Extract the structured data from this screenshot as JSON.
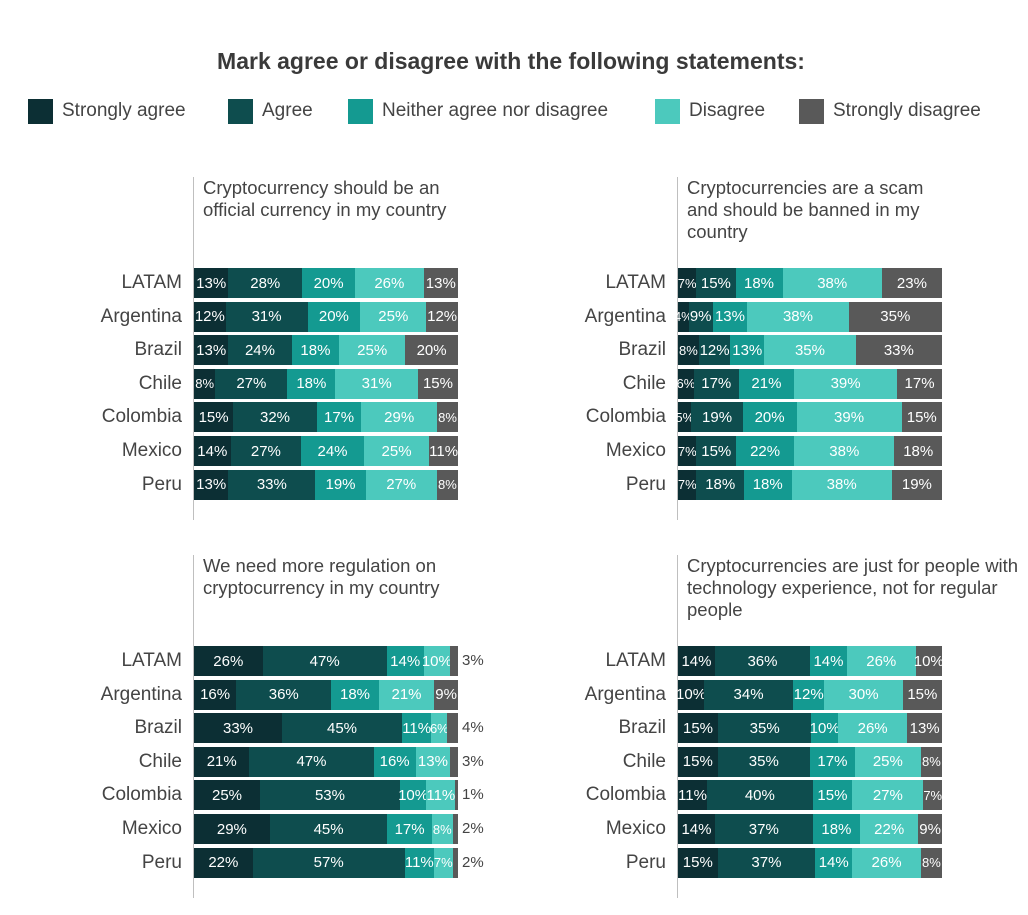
{
  "title": "Mark agree or disagree with the following statements:",
  "colors": {
    "strongly_agree": "#0c2f34",
    "agree": "#0e4d4e",
    "neither": "#149a91",
    "disagree": "#4cc9bd",
    "strongly_disagree": "#595959"
  },
  "legend": [
    {
      "label": "Strongly agree",
      "color": "#0c2f34"
    },
    {
      "label": "Agree",
      "color": "#0e4d4e"
    },
    {
      "label": "Neither agree nor disagree",
      "color": "#149a91"
    },
    {
      "label": "Disagree",
      "color": "#4cc9bd"
    },
    {
      "label": "Strongly disagree",
      "color": "#595959"
    }
  ],
  "chart_data": [
    {
      "type": "bar",
      "stacked": true,
      "orientation": "horizontal",
      "title": "Cryptocurrency should be an official currency in my country",
      "categories": [
        "LATAM",
        "Argentina",
        "Brazil",
        "Chile",
        "Colombia",
        "Mexico",
        "Peru"
      ],
      "series": [
        {
          "name": "Strongly agree",
          "values": [
            13,
            12,
            13,
            8,
            15,
            14,
            13
          ],
          "labels": [
            "13%",
            "12%",
            "13%",
            "8%",
            "15%",
            "14%",
            "13%"
          ]
        },
        {
          "name": "Agree",
          "values": [
            28,
            31,
            24,
            27,
            32,
            27,
            33
          ],
          "labels": [
            "28%",
            "31%",
            "24%",
            "27%",
            "32%",
            "27%",
            "33%"
          ]
        },
        {
          "name": "Neither agree nor disagree",
          "values": [
            20,
            20,
            18,
            18,
            17,
            24,
            19
          ],
          "labels": [
            "20%",
            "20%",
            "18%",
            "18%",
            "17%",
            "24%",
            "19%"
          ]
        },
        {
          "name": "Disagree",
          "values": [
            26,
            25,
            25,
            31,
            29,
            25,
            27
          ],
          "labels": [
            "26%",
            "25%",
            "25%",
            "31%",
            "29%",
            "25%",
            "27%"
          ]
        },
        {
          "name": "Strongly disagree",
          "values": [
            13,
            12,
            20,
            15,
            8,
            11,
            8
          ],
          "labels": [
            "13%",
            "12%",
            "20%",
            "15%",
            "8%",
            "11%",
            "8%"
          ]
        }
      ]
    },
    {
      "type": "bar",
      "stacked": true,
      "orientation": "horizontal",
      "title": "Cryptocurrencies are a scam and should be banned in my country",
      "categories": [
        "LATAM",
        "Argentina",
        "Brazil",
        "Chile",
        "Colombia",
        "Mexico",
        "Peru"
      ],
      "series": [
        {
          "name": "Strongly agree",
          "values": [
            7,
            4,
            8,
            6,
            5,
            7,
            7
          ],
          "labels": [
            "7%",
            "4%",
            "8%",
            "6%",
            "5%",
            "7%",
            "7%"
          ]
        },
        {
          "name": "Agree",
          "values": [
            15,
            9,
            12,
            17,
            19,
            15,
            18
          ],
          "labels": [
            "15%",
            "9%",
            "12%",
            "17%",
            "19%",
            "15%",
            "18%"
          ]
        },
        {
          "name": "Neither agree nor disagree",
          "values": [
            18,
            13,
            13,
            21,
            20,
            22,
            18
          ],
          "labels": [
            "18%",
            "13%",
            "13%",
            "21%",
            "20%",
            "22%",
            "18%"
          ]
        },
        {
          "name": "Disagree",
          "values": [
            38,
            38,
            35,
            39,
            39,
            38,
            38
          ],
          "labels": [
            "38%",
            "38%",
            "35%",
            "39%",
            "39%",
            "38%",
            "38%"
          ]
        },
        {
          "name": "Strongly disagree",
          "values": [
            23,
            35,
            33,
            17,
            15,
            18,
            19
          ],
          "labels": [
            "23%",
            "35%",
            "33%",
            "17%",
            "15%",
            "18%",
            "19%"
          ]
        }
      ]
    },
    {
      "type": "bar",
      "stacked": true,
      "orientation": "horizontal",
      "title": "We need more regulation on cryptocurrency in my country",
      "categories": [
        "LATAM",
        "Argentina",
        "Brazil",
        "Chile",
        "Colombia",
        "Mexico",
        "Peru"
      ],
      "series": [
        {
          "name": "Strongly agree",
          "values": [
            26,
            16,
            33,
            21,
            25,
            29,
            22
          ],
          "labels": [
            "26%",
            "16%",
            "33%",
            "21%",
            "25%",
            "29%",
            "22%"
          ]
        },
        {
          "name": "Agree",
          "values": [
            47,
            36,
            45,
            47,
            53,
            45,
            57
          ],
          "labels": [
            "47%",
            "36%",
            "45%",
            "47%",
            "53%",
            "45%",
            "57%"
          ]
        },
        {
          "name": "Neither agree nor disagree",
          "values": [
            14,
            18,
            11,
            16,
            10,
            17,
            11
          ],
          "labels": [
            "14%",
            "18%",
            "11%",
            "16%",
            "10%",
            "17%",
            "11%"
          ]
        },
        {
          "name": "Disagree",
          "values": [
            10,
            21,
            6,
            13,
            11,
            8,
            7
          ],
          "labels": [
            "10%",
            "21%",
            "6%",
            "13%",
            "11%",
            "8%",
            "7%"
          ]
        },
        {
          "name": "Strongly disagree",
          "values": [
            3,
            9,
            4,
            3,
            1,
            2,
            2
          ],
          "labels": [
            "3%",
            "9%",
            "4%",
            "3%",
            "1%",
            "2%",
            "2%"
          ]
        }
      ]
    },
    {
      "type": "bar",
      "stacked": true,
      "orientation": "horizontal",
      "title": "Cryptocurrencies are just for people with technology experience, not for regular people",
      "categories": [
        "LATAM",
        "Argentina",
        "Brazil",
        "Chile",
        "Colombia",
        "Mexico",
        "Peru"
      ],
      "series": [
        {
          "name": "Strongly agree",
          "values": [
            14,
            10,
            15,
            15,
            11,
            14,
            15
          ],
          "labels": [
            "14%",
            "10%",
            "15%",
            "15%",
            "11%",
            "14%",
            "15%"
          ]
        },
        {
          "name": "Agree",
          "values": [
            36,
            34,
            35,
            35,
            40,
            37,
            37
          ],
          "labels": [
            "36%",
            "34%",
            "35%",
            "35%",
            "40%",
            "37%",
            "37%"
          ]
        },
        {
          "name": "Neither agree nor disagree",
          "values": [
            14,
            12,
            10,
            17,
            15,
            18,
            14
          ],
          "labels": [
            "14%",
            "12%",
            "10%",
            "17%",
            "15%",
            "18%",
            "14%"
          ]
        },
        {
          "name": "Disagree",
          "values": [
            26,
            30,
            26,
            25,
            27,
            22,
            26
          ],
          "labels": [
            "26%",
            "30%",
            "26%",
            "25%",
            "27%",
            "22%",
            "26%"
          ]
        },
        {
          "name": "Strongly disagree",
          "values": [
            10,
            15,
            13,
            8,
            7,
            9,
            8
          ],
          "labels": [
            "10%",
            "15%",
            "13%",
            "8%",
            "7%",
            "9%",
            "8%"
          ]
        }
      ]
    }
  ]
}
